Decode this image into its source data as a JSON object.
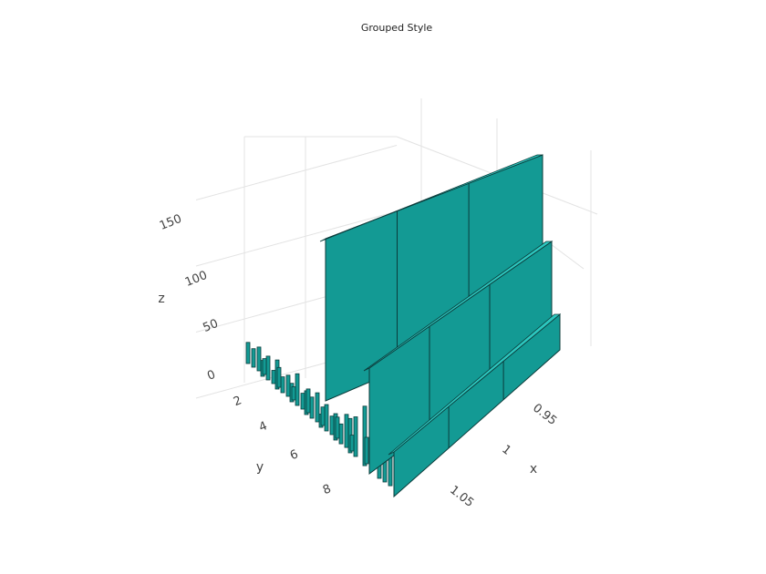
{
  "chart_data": {
    "type": "bar3d",
    "title": "Grouped Style",
    "xlabel": "x",
    "ylabel": "y",
    "zlabel": "z",
    "x_ticks": [
      "0.95",
      "1",
      "1.05"
    ],
    "y_ticks": [
      "2",
      "4",
      "6",
      "8"
    ],
    "z_ticks": [
      "0",
      "50",
      "100",
      "150"
    ],
    "bar_color": "#139a94",
    "edge_color": "#0b3b3a",
    "xlim": [
      0.9,
      1.1
    ],
    "ylim": [
      0,
      10
    ],
    "zlim": [
      0,
      180
    ],
    "series": [
      {
        "x": 0.96,
        "values": [
          16,
          12,
          22,
          14,
          18,
          10,
          20,
          26,
          45,
          12
        ]
      },
      {
        "x": 0.99,
        "values": [
          14,
          18,
          12,
          24,
          16,
          20,
          15,
          30,
          160,
          60
        ]
      },
      {
        "x": 1.02,
        "values": [
          18,
          10,
          16,
          12,
          22,
          14,
          25,
          140,
          175,
          35
        ]
      },
      {
        "x": 1.05,
        "values": [
          12,
          15,
          10,
          18,
          14,
          16,
          12,
          20,
          150,
          30
        ]
      }
    ]
  }
}
